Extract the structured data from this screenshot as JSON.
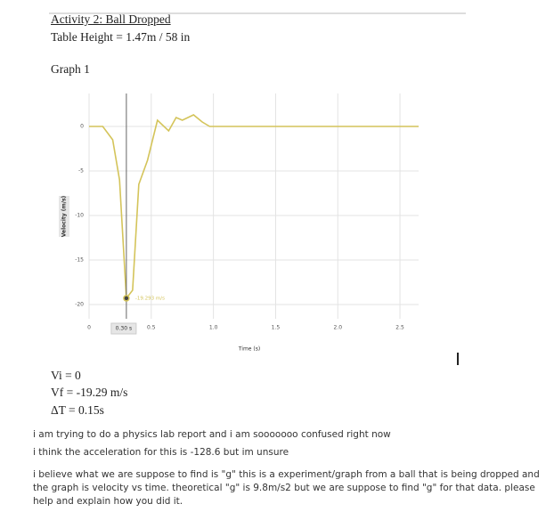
{
  "document": {
    "activity_title": "Activity 2: Ball Dropped",
    "table_height": "Table Height = 1.47m / 58 in",
    "graph_title": "Graph 1",
    "results": [
      "Vi = 0",
      "Vf = -19.29 m/s",
      "ΔT = 0.15s"
    ],
    "question": [
      "i am trying to do a physics lab report and i am sooooooo confused right now",
      "i think the acceleration for this is -128.6 but im unsure",
      "i believe what we are suppose to find is \"g\" this is a experiment/graph from a ball that is being dropped and the graph is velocity vs time. theoretical \"g\" is 9.8m/s2 but we are suppose to find \"g\" for that data. please help and explain how you did it."
    ]
  },
  "chart_data": {
    "type": "line",
    "x_label": "Time (s)",
    "y_label": "Velocity (m/s)",
    "x": [
      0,
      0.11,
      0.19,
      0.245,
      0.3,
      0.35,
      0.4,
      0.47,
      0.55,
      0.64,
      0.7,
      0.75,
      0.81,
      0.84,
      0.91,
      0.97,
      1.15,
      1.5,
      2.0,
      2.5,
      2.65
    ],
    "series": [
      {
        "color": "#d4c45a",
        "values": [
          0,
          0,
          -1.5,
          -6,
          -19.293,
          -18.4,
          -6.5,
          -3.8,
          0.7,
          -0.5,
          1.0,
          0.7,
          1.1,
          1.3,
          0.5,
          0,
          0,
          0,
          0,
          0,
          0
        ]
      }
    ],
    "xlim": [
      0,
      2.65
    ],
    "ylim": [
      -20.8,
      3.7
    ],
    "xticks": [
      0,
      0.5,
      {
        "value": 1,
        "label": "1.0"
      },
      1.5,
      {
        "value": 2,
        "label": "2.0"
      },
      2.5
    ],
    "yticks": [
      0,
      -5,
      -10,
      -15,
      -20
    ],
    "grid": true,
    "cursor": {
      "x": 0.3,
      "label": "0.30 s"
    },
    "marker": {
      "y": -19.293,
      "label": "-19.293 m/s"
    }
  }
}
